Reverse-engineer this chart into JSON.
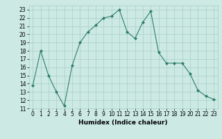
{
  "x": [
    0,
    1,
    2,
    3,
    4,
    5,
    6,
    7,
    8,
    9,
    10,
    11,
    12,
    13,
    14,
    15,
    16,
    17,
    18,
    19,
    20,
    21,
    22,
    23
  ],
  "y": [
    13.8,
    18.0,
    15.0,
    13.0,
    11.3,
    16.2,
    19.0,
    20.3,
    21.1,
    22.0,
    22.2,
    23.0,
    20.3,
    19.5,
    21.5,
    22.8,
    17.8,
    16.5,
    16.5,
    16.5,
    15.2,
    13.2,
    12.5,
    12.1
  ],
  "line_color": "#2e7d6e",
  "marker": "D",
  "marker_size": 2.0,
  "bg_color": "#cce9e4",
  "grid_color": "#a8cfc8",
  "xlabel": "Humidex (Indice chaleur)",
  "ylim": [
    11,
    23.5
  ],
  "xlim": [
    -0.5,
    23.5
  ],
  "yticks": [
    11,
    12,
    13,
    14,
    15,
    16,
    17,
    18,
    19,
    20,
    21,
    22,
    23
  ],
  "xticks": [
    0,
    1,
    2,
    3,
    4,
    5,
    6,
    7,
    8,
    9,
    10,
    11,
    12,
    13,
    14,
    15,
    16,
    17,
    18,
    19,
    20,
    21,
    22,
    23
  ],
  "tick_fontsize": 5.5,
  "xlabel_fontsize": 6.5,
  "line_width": 0.8
}
